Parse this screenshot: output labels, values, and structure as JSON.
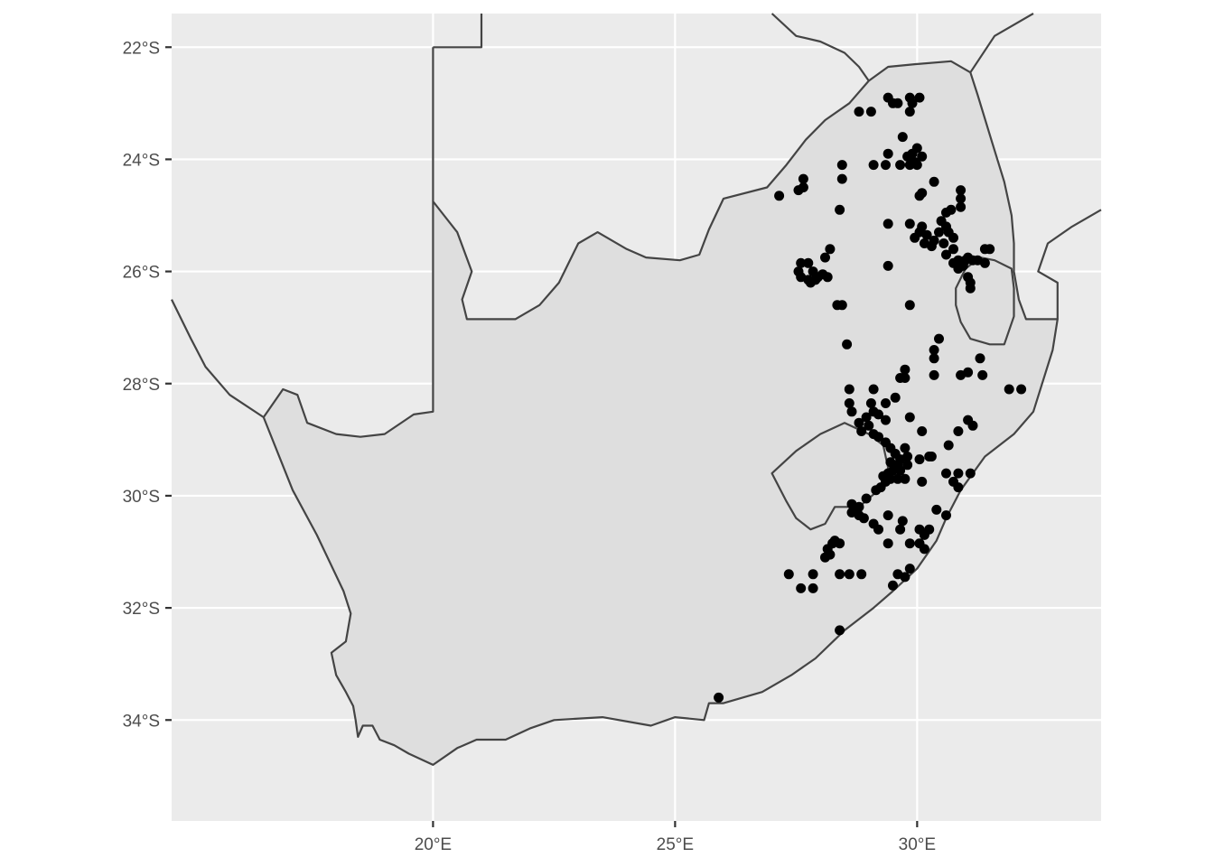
{
  "chart_data": {
    "type": "scatter",
    "title": "",
    "xlabel": "",
    "ylabel": "",
    "xlim": [
      14.6,
      33.8
    ],
    "ylim": [
      -35.8,
      -21.4
    ],
    "x_ticks": [
      20,
      25,
      30
    ],
    "y_ticks": [
      -22,
      -24,
      -26,
      -28,
      -30,
      -32,
      -34
    ],
    "x_tick_labels": [
      "20°E",
      "25°E",
      "30°E"
    ],
    "y_tick_labels": [
      "22°S",
      "24°S",
      "26°S",
      "28°S",
      "30°S",
      "32°S",
      "34°S"
    ],
    "grid": true,
    "panel_color": "#ebebeb",
    "land_color": "#dedede",
    "border_color": "#444444",
    "point_color": "#000000",
    "points": [
      [
        29.4,
        -22.9
      ],
      [
        29.5,
        -23.0
      ],
      [
        29.6,
        -23.0
      ],
      [
        29.85,
        -22.9
      ],
      [
        30.05,
        -22.9
      ],
      [
        29.9,
        -23.0
      ],
      [
        29.85,
        -23.15
      ],
      [
        28.8,
        -23.15
      ],
      [
        29.05,
        -23.15
      ],
      [
        29.7,
        -23.6
      ],
      [
        29.1,
        -24.1
      ],
      [
        29.35,
        -24.1
      ],
      [
        29.4,
        -23.9
      ],
      [
        29.65,
        -24.1
      ],
      [
        29.85,
        -24.1
      ],
      [
        29.9,
        -23.9
      ],
      [
        30.0,
        -23.8
      ],
      [
        30.1,
        -23.95
      ],
      [
        29.95,
        -24.05
      ],
      [
        29.8,
        -23.95
      ],
      [
        30.0,
        -24.1
      ],
      [
        30.35,
        -24.4
      ],
      [
        28.45,
        -24.1
      ],
      [
        28.45,
        -24.35
      ],
      [
        27.65,
        -24.35
      ],
      [
        27.55,
        -24.55
      ],
      [
        27.65,
        -24.5
      ],
      [
        27.15,
        -24.65
      ],
      [
        28.4,
        -24.9
      ],
      [
        30.05,
        -24.65
      ],
      [
        30.1,
        -24.6
      ],
      [
        30.9,
        -24.55
      ],
      [
        30.9,
        -24.7
      ],
      [
        30.9,
        -24.85
      ],
      [
        30.6,
        -24.95
      ],
      [
        30.7,
        -24.9
      ],
      [
        30.5,
        -25.1
      ],
      [
        30.6,
        -25.2
      ],
      [
        30.65,
        -25.3
      ],
      [
        30.45,
        -25.3
      ],
      [
        30.35,
        -25.45
      ],
      [
        30.1,
        -25.2
      ],
      [
        29.85,
        -25.15
      ],
      [
        29.95,
        -25.4
      ],
      [
        30.05,
        -25.3
      ],
      [
        30.2,
        -25.35
      ],
      [
        30.15,
        -25.5
      ],
      [
        30.3,
        -25.55
      ],
      [
        30.55,
        -25.5
      ],
      [
        30.75,
        -25.4
      ],
      [
        30.75,
        -25.6
      ],
      [
        30.6,
        -25.7
      ],
      [
        29.4,
        -25.15
      ],
      [
        29.4,
        -25.9
      ],
      [
        31.4,
        -25.6
      ],
      [
        31.5,
        -25.6
      ],
      [
        31.4,
        -25.85
      ],
      [
        30.85,
        -25.8
      ],
      [
        31.0,
        -25.8
      ],
      [
        31.15,
        -25.8
      ],
      [
        31.25,
        -25.8
      ],
      [
        31.05,
        -25.75
      ],
      [
        30.75,
        -25.85
      ],
      [
        30.95,
        -25.9
      ],
      [
        30.85,
        -25.95
      ],
      [
        31.05,
        -26.1
      ],
      [
        31.1,
        -26.2
      ],
      [
        31.1,
        -26.3
      ],
      [
        28.2,
        -25.6
      ],
      [
        27.6,
        -25.85
      ],
      [
        27.75,
        -25.85
      ],
      [
        28.1,
        -25.75
      ],
      [
        27.55,
        -26.0
      ],
      [
        27.85,
        -26.0
      ],
      [
        27.95,
        -26.1
      ],
      [
        27.6,
        -26.1
      ],
      [
        27.75,
        -26.15
      ],
      [
        27.8,
        -26.2
      ],
      [
        27.9,
        -26.15
      ],
      [
        28.15,
        -26.1
      ],
      [
        28.05,
        -26.05
      ],
      [
        28.45,
        -26.6
      ],
      [
        28.35,
        -26.6
      ],
      [
        29.85,
        -26.6
      ],
      [
        28.55,
        -27.3
      ],
      [
        30.45,
        -27.2
      ],
      [
        30.35,
        -27.4
      ],
      [
        30.35,
        -27.55
      ],
      [
        31.3,
        -27.55
      ],
      [
        29.75,
        -27.75
      ],
      [
        29.75,
        -27.9
      ],
      [
        29.65,
        -27.9
      ],
      [
        30.35,
        -27.85
      ],
      [
        30.9,
        -27.85
      ],
      [
        31.05,
        -27.8
      ],
      [
        31.35,
        -27.85
      ],
      [
        31.9,
        -28.1
      ],
      [
        32.15,
        -28.1
      ],
      [
        28.6,
        -28.1
      ],
      [
        29.1,
        -28.1
      ],
      [
        29.35,
        -28.35
      ],
      [
        29.05,
        -28.35
      ],
      [
        28.6,
        -28.35
      ],
      [
        29.55,
        -28.25
      ],
      [
        28.65,
        -28.5
      ],
      [
        28.8,
        -28.7
      ],
      [
        28.95,
        -28.6
      ],
      [
        29.1,
        -28.5
      ],
      [
        29.2,
        -28.55
      ],
      [
        29.0,
        -28.75
      ],
      [
        28.85,
        -28.85
      ],
      [
        29.35,
        -28.65
      ],
      [
        29.85,
        -28.6
      ],
      [
        30.1,
        -28.85
      ],
      [
        30.85,
        -28.85
      ],
      [
        31.05,
        -28.65
      ],
      [
        31.15,
        -28.75
      ],
      [
        30.65,
        -29.1
      ],
      [
        29.1,
        -28.9
      ],
      [
        29.2,
        -28.95
      ],
      [
        29.35,
        -29.05
      ],
      [
        29.45,
        -29.15
      ],
      [
        29.55,
        -29.25
      ],
      [
        29.65,
        -29.35
      ],
      [
        29.75,
        -29.15
      ],
      [
        29.8,
        -29.3
      ],
      [
        29.6,
        -29.45
      ],
      [
        29.5,
        -29.55
      ],
      [
        29.4,
        -29.6
      ],
      [
        29.3,
        -29.65
      ],
      [
        29.35,
        -29.75
      ],
      [
        29.45,
        -29.7
      ],
      [
        29.6,
        -29.7
      ],
      [
        29.75,
        -29.7
      ],
      [
        29.65,
        -29.55
      ],
      [
        29.8,
        -29.45
      ],
      [
        29.45,
        -29.4
      ],
      [
        29.25,
        -29.85
      ],
      [
        29.15,
        -29.9
      ],
      [
        30.05,
        -29.35
      ],
      [
        30.25,
        -29.3
      ],
      [
        30.3,
        -29.3
      ],
      [
        30.6,
        -29.6
      ],
      [
        30.75,
        -29.75
      ],
      [
        30.85,
        -29.6
      ],
      [
        30.85,
        -29.85
      ],
      [
        31.1,
        -29.6
      ],
      [
        30.1,
        -29.75
      ],
      [
        28.95,
        -30.05
      ],
      [
        28.65,
        -30.15
      ],
      [
        28.8,
        -30.2
      ],
      [
        28.65,
        -30.3
      ],
      [
        28.8,
        -30.35
      ],
      [
        28.9,
        -30.4
      ],
      [
        29.1,
        -30.5
      ],
      [
        29.2,
        -30.6
      ],
      [
        29.4,
        -30.35
      ],
      [
        29.7,
        -30.45
      ],
      [
        29.65,
        -30.6
      ],
      [
        30.4,
        -30.25
      ],
      [
        30.6,
        -30.35
      ],
      [
        30.05,
        -30.6
      ],
      [
        30.15,
        -30.7
      ],
      [
        30.25,
        -30.6
      ],
      [
        30.05,
        -30.85
      ],
      [
        30.15,
        -30.95
      ],
      [
        28.3,
        -30.8
      ],
      [
        28.25,
        -30.85
      ],
      [
        28.15,
        -30.95
      ],
      [
        28.1,
        -31.1
      ],
      [
        28.2,
        -31.05
      ],
      [
        28.4,
        -30.85
      ],
      [
        29.4,
        -30.85
      ],
      [
        29.85,
        -30.85
      ],
      [
        27.35,
        -31.4
      ],
      [
        27.6,
        -31.65
      ],
      [
        27.85,
        -31.4
      ],
      [
        27.85,
        -31.65
      ],
      [
        28.4,
        -31.4
      ],
      [
        28.6,
        -31.4
      ],
      [
        28.85,
        -31.4
      ],
      [
        29.6,
        -31.4
      ],
      [
        29.75,
        -31.45
      ],
      [
        29.85,
        -31.3
      ],
      [
        29.5,
        -31.6
      ],
      [
        28.4,
        -32.4
      ],
      [
        25.9,
        -33.6
      ]
    ],
    "land_outline": [
      [
        16.5,
        -28.6
      ],
      [
        16.9,
        -28.1
      ],
      [
        17.2,
        -28.2
      ],
      [
        17.4,
        -28.7
      ],
      [
        18.0,
        -28.9
      ],
      [
        18.5,
        -28.95
      ],
      [
        19.0,
        -28.9
      ],
      [
        19.6,
        -28.55
      ],
      [
        20.0,
        -28.5
      ],
      [
        20.0,
        -24.75
      ],
      [
        20.5,
        -25.3
      ],
      [
        20.8,
        -26.0
      ],
      [
        20.6,
        -26.5
      ],
      [
        20.7,
        -26.85
      ],
      [
        21.7,
        -26.85
      ],
      [
        22.2,
        -26.6
      ],
      [
        22.6,
        -26.2
      ],
      [
        23.0,
        -25.5
      ],
      [
        23.4,
        -25.3
      ],
      [
        24.0,
        -25.6
      ],
      [
        24.4,
        -25.75
      ],
      [
        25.1,
        -25.8
      ],
      [
        25.5,
        -25.7
      ],
      [
        25.7,
        -25.25
      ],
      [
        26.0,
        -24.7
      ],
      [
        26.9,
        -24.5
      ],
      [
        27.3,
        -24.1
      ],
      [
        27.7,
        -23.65
      ],
      [
        28.1,
        -23.3
      ],
      [
        28.6,
        -23.0
      ],
      [
        29.0,
        -22.6
      ],
      [
        29.4,
        -22.35
      ],
      [
        30.0,
        -22.3
      ],
      [
        30.7,
        -22.25
      ],
      [
        31.1,
        -22.45
      ],
      [
        31.25,
        -22.85
      ],
      [
        31.55,
        -23.7
      ],
      [
        31.8,
        -24.4
      ],
      [
        31.95,
        -25.0
      ],
      [
        32.0,
        -25.5
      ],
      [
        32.0,
        -26.0
      ],
      [
        32.1,
        -26.5
      ],
      [
        32.25,
        -26.85
      ],
      [
        32.9,
        -26.85
      ],
      [
        32.8,
        -27.4
      ],
      [
        32.4,
        -28.5
      ],
      [
        32.0,
        -28.9
      ],
      [
        31.4,
        -29.3
      ],
      [
        30.9,
        -29.9
      ],
      [
        30.6,
        -30.4
      ],
      [
        30.4,
        -30.8
      ],
      [
        30.0,
        -31.3
      ],
      [
        29.5,
        -31.7
      ],
      [
        29.1,
        -32.0
      ],
      [
        28.5,
        -32.4
      ],
      [
        27.9,
        -32.9
      ],
      [
        27.4,
        -33.2
      ],
      [
        26.8,
        -33.5
      ],
      [
        26.0,
        -33.7
      ],
      [
        25.7,
        -33.7
      ],
      [
        25.6,
        -34.0
      ],
      [
        25.0,
        -33.95
      ],
      [
        24.5,
        -34.1
      ],
      [
        23.5,
        -33.95
      ],
      [
        22.5,
        -34.0
      ],
      [
        22.0,
        -34.15
      ],
      [
        21.5,
        -34.35
      ],
      [
        20.9,
        -34.35
      ],
      [
        20.5,
        -34.5
      ],
      [
        20.0,
        -34.8
      ],
      [
        19.5,
        -34.6
      ],
      [
        19.2,
        -34.45
      ],
      [
        18.9,
        -34.35
      ],
      [
        18.75,
        -34.1
      ],
      [
        18.55,
        -34.1
      ],
      [
        18.45,
        -34.3
      ],
      [
        18.4,
        -34.0
      ],
      [
        18.35,
        -33.75
      ],
      [
        18.2,
        -33.5
      ],
      [
        18.0,
        -33.2
      ],
      [
        17.9,
        -32.8
      ],
      [
        18.2,
        -32.6
      ],
      [
        18.3,
        -32.1
      ],
      [
        18.15,
        -31.7
      ],
      [
        17.6,
        -30.7
      ],
      [
        17.1,
        -29.9
      ],
      [
        16.5,
        -28.6
      ]
    ],
    "lesotho_outline": [
      [
        27.0,
        -29.6
      ],
      [
        27.5,
        -29.2
      ],
      [
        28.0,
        -28.9
      ],
      [
        28.5,
        -28.7
      ],
      [
        29.0,
        -28.9
      ],
      [
        29.3,
        -29.1
      ],
      [
        29.4,
        -29.5
      ],
      [
        29.2,
        -29.9
      ],
      [
        28.8,
        -30.2
      ],
      [
        28.3,
        -30.2
      ],
      [
        28.1,
        -30.5
      ],
      [
        27.8,
        -30.6
      ],
      [
        27.5,
        -30.4
      ],
      [
        27.3,
        -30.1
      ],
      [
        27.0,
        -29.6
      ]
    ],
    "swaziland_outline": [
      [
        30.8,
        -26.6
      ],
      [
        30.8,
        -26.3
      ],
      [
        31.0,
        -25.95
      ],
      [
        31.3,
        -25.75
      ],
      [
        31.6,
        -25.8
      ],
      [
        31.95,
        -25.95
      ],
      [
        32.0,
        -26.3
      ],
      [
        32.0,
        -26.8
      ],
      [
        31.8,
        -27.3
      ],
      [
        31.5,
        -27.3
      ],
      [
        31.1,
        -27.2
      ],
      [
        30.9,
        -26.9
      ],
      [
        30.8,
        -26.6
      ]
    ],
    "neighbor_borders": [
      [
        [
          14.6,
          -26.5
        ],
        [
          15.0,
          -27.2
        ],
        [
          15.3,
          -27.7
        ],
        [
          15.8,
          -28.2
        ],
        [
          16.5,
          -28.6
        ]
      ],
      [
        [
          20.0,
          -22.0
        ],
        [
          21.0,
          -22.0
        ],
        [
          21.0,
          -21.4
        ]
      ],
      [
        [
          20.0,
          -24.75
        ],
        [
          20.0,
          -22.0
        ]
      ],
      [
        [
          31.1,
          -22.45
        ],
        [
          31.6,
          -21.8
        ],
        [
          32.4,
          -21.4
        ]
      ],
      [
        [
          32.9,
          -26.85
        ],
        [
          32.9,
          -26.2
        ],
        [
          32.5,
          -26.0
        ],
        [
          32.7,
          -25.5
        ],
        [
          33.2,
          -25.2
        ],
        [
          33.8,
          -24.9
        ]
      ],
      [
        [
          27.0,
          -21.4
        ],
        [
          27.5,
          -21.8
        ],
        [
          28.0,
          -21.9
        ],
        [
          28.5,
          -22.1
        ],
        [
          28.8,
          -22.35
        ],
        [
          29.0,
          -22.6
        ]
      ]
    ]
  }
}
